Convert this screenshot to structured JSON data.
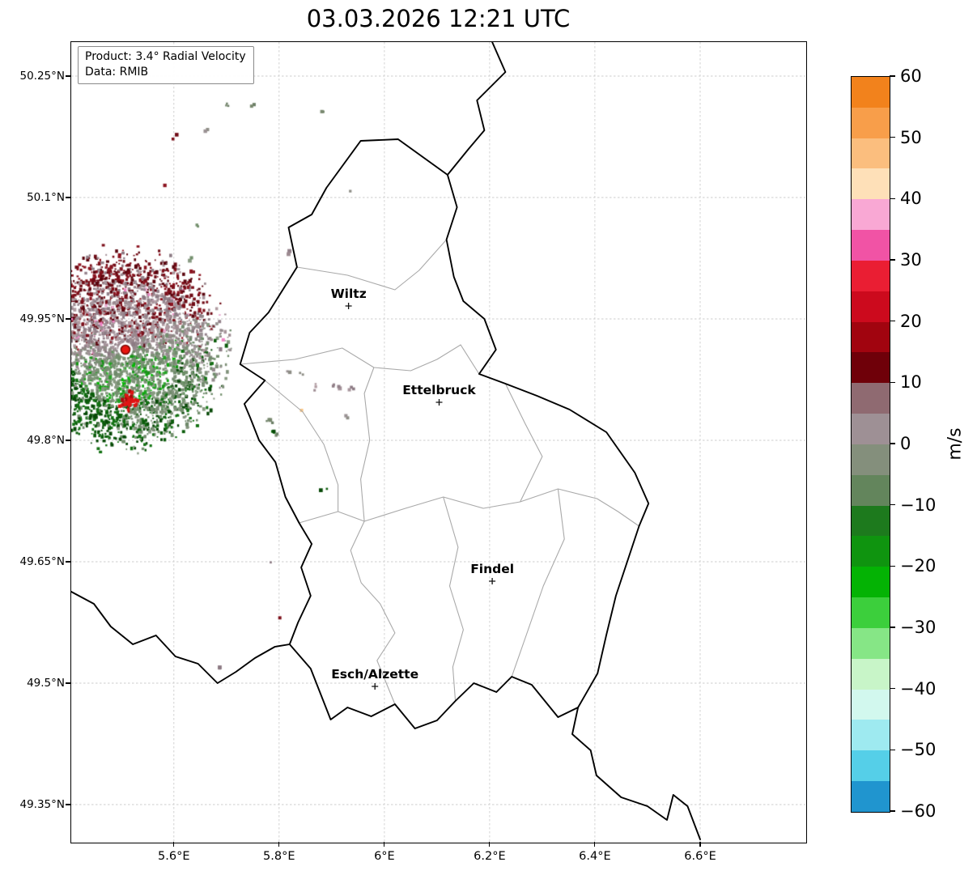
{
  "title": "03.03.2026 12:21 UTC",
  "info_box": {
    "line1": "Product: 3.4° Radial Velocity",
    "line2": "Data: RMIB"
  },
  "map": {
    "lon_min": 5.405,
    "lon_max": 6.8,
    "lat_min": 49.304,
    "lat_max": 50.292,
    "x_ticks": [
      {
        "value": 5.6,
        "label": "5.6°E"
      },
      {
        "value": 5.8,
        "label": "5.8°E"
      },
      {
        "value": 6.0,
        "label": "6°E"
      },
      {
        "value": 6.2,
        "label": "6.2°E"
      },
      {
        "value": 6.4,
        "label": "6.4°E"
      },
      {
        "value": 6.6,
        "label": "6.6°E"
      }
    ],
    "y_ticks": [
      {
        "value": 50.25,
        "label": "50.25°N"
      },
      {
        "value": 50.1,
        "label": "50.1°N"
      },
      {
        "value": 49.95,
        "label": "49.95°N"
      },
      {
        "value": 49.8,
        "label": "49.8°N"
      },
      {
        "value": 49.65,
        "label": "49.65°N"
      },
      {
        "value": 49.5,
        "label": "49.5°N"
      },
      {
        "value": 49.35,
        "label": "49.35°N"
      }
    ]
  },
  "cities": [
    {
      "name": "Wiltz",
      "lon": 5.932,
      "lat": 49.966
    },
    {
      "name": "Ettelbruck",
      "lon": 6.104,
      "lat": 49.847
    },
    {
      "name": "Findel",
      "lon": 6.205,
      "lat": 49.626
    },
    {
      "name": "Esch/Alzette",
      "lon": 5.982,
      "lat": 49.496
    }
  ],
  "borders": {
    "country": [
      [
        6.026,
        50.172
      ],
      [
        6.12,
        50.128
      ],
      [
        6.138,
        50.088
      ],
      [
        6.118,
        50.048
      ],
      [
        6.132,
        50.002
      ],
      [
        6.15,
        49.972
      ],
      [
        6.19,
        49.95
      ],
      [
        6.212,
        49.912
      ],
      [
        6.18,
        49.882
      ],
      [
        6.23,
        49.87
      ],
      [
        6.29,
        49.855
      ],
      [
        6.352,
        49.838
      ],
      [
        6.422,
        49.81
      ],
      [
        6.476,
        49.76
      ],
      [
        6.502,
        49.722
      ],
      [
        6.484,
        49.694
      ],
      [
        6.44,
        49.608
      ],
      [
        6.422,
        49.56
      ],
      [
        6.405,
        49.512
      ],
      [
        6.368,
        49.47
      ],
      [
        6.33,
        49.458
      ],
      [
        6.28,
        49.498
      ],
      [
        6.242,
        49.508
      ],
      [
        6.213,
        49.489
      ],
      [
        6.17,
        49.5
      ],
      [
        6.135,
        49.478
      ],
      [
        6.1,
        49.454
      ],
      [
        6.058,
        49.444
      ],
      [
        6.02,
        49.474
      ],
      [
        5.975,
        49.459
      ],
      [
        5.93,
        49.47
      ],
      [
        5.898,
        49.455
      ],
      [
        5.86,
        49.518
      ],
      [
        5.82,
        49.548
      ],
      [
        5.836,
        49.575
      ],
      [
        5.86,
        49.608
      ],
      [
        5.842,
        49.643
      ],
      [
        5.862,
        49.672
      ],
      [
        5.838,
        49.698
      ],
      [
        5.812,
        49.73
      ],
      [
        5.793,
        49.773
      ],
      [
        5.762,
        49.8
      ],
      [
        5.745,
        49.828
      ],
      [
        5.734,
        49.845
      ],
      [
        5.773,
        49.874
      ],
      [
        5.726,
        49.894
      ],
      [
        5.744,
        49.933
      ],
      [
        5.78,
        49.958
      ],
      [
        5.834,
        50.014
      ],
      [
        5.818,
        50.063
      ],
      [
        5.862,
        50.079
      ],
      [
        5.89,
        50.112
      ],
      [
        5.955,
        50.17
      ]
    ],
    "external": [
      [
        [
          6.12,
          50.128
        ],
        [
          6.16,
          50.16
        ],
        [
          6.19,
          50.183
        ],
        [
          6.176,
          50.22
        ],
        [
          6.23,
          50.255
        ],
        [
          6.205,
          50.292
        ]
      ],
      [
        [
          5.405,
          49.613
        ],
        [
          5.448,
          49.598
        ],
        [
          5.48,
          49.57
        ],
        [
          5.522,
          49.548
        ],
        [
          5.566,
          49.559
        ],
        [
          5.603,
          49.533
        ],
        [
          5.646,
          49.524
        ],
        [
          5.683,
          49.5
        ],
        [
          5.718,
          49.514
        ],
        [
          5.754,
          49.531
        ],
        [
          5.792,
          49.545
        ],
        [
          5.82,
          49.548
        ]
      ],
      [
        [
          6.368,
          49.47
        ],
        [
          6.357,
          49.437
        ],
        [
          6.392,
          49.417
        ],
        [
          6.403,
          49.386
        ],
        [
          6.45,
          49.359
        ],
        [
          6.5,
          49.348
        ],
        [
          6.537,
          49.331
        ],
        [
          6.549,
          49.362
        ],
        [
          6.576,
          49.348
        ],
        [
          6.6,
          49.307
        ]
      ]
    ],
    "internal": [
      [
        [
          5.834,
          50.014
        ],
        [
          5.93,
          50.004
        ],
        [
          6.02,
          49.986
        ],
        [
          6.066,
          50.01
        ],
        [
          6.118,
          50.048
        ]
      ],
      [
        [
          5.726,
          49.894
        ],
        [
          5.83,
          49.9
        ],
        [
          5.92,
          49.914
        ],
        [
          5.98,
          49.89
        ],
        [
          6.05,
          49.886
        ],
        [
          6.1,
          49.9
        ],
        [
          6.145,
          49.918
        ],
        [
          6.18,
          49.882
        ]
      ],
      [
        [
          5.98,
          49.89
        ],
        [
          5.962,
          49.858
        ],
        [
          5.972,
          49.8
        ],
        [
          5.955,
          49.752
        ],
        [
          5.962,
          49.7
        ],
        [
          5.936,
          49.664
        ],
        [
          5.956,
          49.624
        ],
        [
          5.992,
          49.598
        ],
        [
          6.02,
          49.562
        ],
        [
          5.986,
          49.528
        ],
        [
          6.02,
          49.474
        ]
      ],
      [
        [
          5.838,
          49.698
        ],
        [
          5.912,
          49.712
        ],
        [
          5.962,
          49.7
        ],
        [
          6.04,
          49.716
        ],
        [
          6.112,
          49.73
        ],
        [
          6.188,
          49.716
        ],
        [
          6.258,
          49.724
        ],
        [
          6.33,
          49.74
        ],
        [
          6.404,
          49.728
        ],
        [
          6.444,
          49.712
        ],
        [
          6.484,
          49.694
        ]
      ],
      [
        [
          6.112,
          49.73
        ],
        [
          6.14,
          49.668
        ],
        [
          6.124,
          49.62
        ],
        [
          6.15,
          49.566
        ],
        [
          6.13,
          49.52
        ],
        [
          6.135,
          49.478
        ]
      ],
      [
        [
          6.23,
          49.87
        ],
        [
          6.268,
          49.82
        ],
        [
          6.3,
          49.78
        ],
        [
          6.258,
          49.724
        ]
      ],
      [
        [
          6.33,
          49.74
        ],
        [
          6.342,
          49.678
        ],
        [
          6.302,
          49.62
        ],
        [
          6.27,
          49.56
        ],
        [
          6.242,
          49.508
        ]
      ],
      [
        [
          5.773,
          49.874
        ],
        [
          5.845,
          49.835
        ],
        [
          5.885,
          49.795
        ],
        [
          5.912,
          49.745
        ],
        [
          5.912,
          49.712
        ]
      ]
    ]
  },
  "radar": {
    "center_lon": 5.508,
    "center_lat": 49.912,
    "radius_deg_lat": 0.112,
    "echo_count": 4300,
    "site_marker_color": "#e8150f",
    "palette": {
      "mauve": [
        "#9d8b91",
        "#93818a",
        "#a7959c",
        "#8c7a83",
        "#b09ba1"
      ],
      "darkred": [
        "#6e0a14",
        "#8c1420",
        "#5a050e",
        "#7c0f1a"
      ],
      "pink": [
        "#ef82c4",
        "#e8a8cf"
      ],
      "green": [
        "#7e9078",
        "#6f8a6b",
        "#889a82",
        "#74906e"
      ],
      "brightgreen": [
        "#159415",
        "#0ca80c",
        "#00bb00",
        "#25a325"
      ],
      "darkgreen": [
        "#0b5c0b",
        "#064806",
        "#127112"
      ],
      "graygreen": [
        "#79896f",
        "#6c7f66"
      ],
      "gray": [
        "#948a8d",
        "#8d8d85",
        "#9b9294"
      ],
      "orange": [
        "#f9c27d"
      ]
    },
    "red_cluster": {
      "lon": 5.511,
      "lat": 49.849,
      "color": "#e01414"
    },
    "clutter": [
      [
        5.7,
        50.214,
        "graygreen",
        3
      ],
      [
        5.742,
        50.217,
        "graygreen",
        2
      ],
      [
        5.884,
        50.208,
        "graygreen",
        2
      ],
      [
        5.6,
        50.177,
        "darkred",
        2
      ],
      [
        5.655,
        50.182,
        "gray",
        2
      ],
      [
        5.58,
        50.12,
        "darkred",
        1
      ],
      [
        5.94,
        50.112,
        "gray",
        1
      ],
      [
        5.64,
        50.065,
        "green",
        2
      ],
      [
        5.816,
        50.034,
        "mauve",
        2
      ],
      [
        5.623,
        50.024,
        "green",
        2
      ],
      [
        5.69,
        49.93,
        "pink",
        1
      ],
      [
        5.816,
        49.889,
        "gray",
        2
      ],
      [
        5.839,
        49.884,
        "gray",
        2
      ],
      [
        5.872,
        49.867,
        "mauve",
        3
      ],
      [
        5.905,
        49.868,
        "mauve",
        4
      ],
      [
        5.932,
        49.866,
        "mauve",
        3
      ],
      [
        5.839,
        49.842,
        "orange",
        1
      ],
      [
        5.781,
        49.824,
        "graygreen",
        4
      ],
      [
        5.788,
        49.815,
        "darkgreen",
        3
      ],
      [
        5.794,
        49.806,
        "graygreen",
        2
      ],
      [
        5.92,
        49.83,
        "gray",
        2
      ],
      [
        5.882,
        49.744,
        "darkgreen",
        2
      ],
      [
        5.787,
        49.654,
        "mauve",
        1
      ],
      [
        5.796,
        49.586,
        "darkred",
        1
      ],
      [
        5.685,
        49.522,
        "mauve",
        2
      ]
    ]
  },
  "colorbar": {
    "label": "m/s",
    "vmin": -60,
    "vmax": 60,
    "ticks": [
      {
        "value": 60,
        "label": "60"
      },
      {
        "value": 50,
        "label": "50"
      },
      {
        "value": 40,
        "label": "40"
      },
      {
        "value": 30,
        "label": "30"
      },
      {
        "value": 20,
        "label": "20"
      },
      {
        "value": 10,
        "label": "10"
      },
      {
        "value": 0,
        "label": "0"
      },
      {
        "value": -10,
        "label": "−10"
      },
      {
        "value": -20,
        "label": "−20"
      },
      {
        "value": -30,
        "label": "−30"
      },
      {
        "value": -40,
        "label": "−40"
      },
      {
        "value": -50,
        "label": "−50"
      },
      {
        "value": -60,
        "label": "−60"
      }
    ],
    "segments": [
      "#f2821c",
      "#f89e4a",
      "#fbbe7e",
      "#fee0b8",
      "#f9a8d4",
      "#f153a5",
      "#ea1e33",
      "#cc0a1d",
      "#a1040f",
      "#6f0009",
      "#8f6a71",
      "#9e9095",
      "#848f7c",
      "#63855c",
      "#1d7a1d",
      "#0f940f",
      "#04b304",
      "#3ccf3c",
      "#86e686",
      "#c8f5c8",
      "#d2f8ee",
      "#9eeaf0",
      "#55cfe8",
      "#2095cf"
    ]
  },
  "chart_data": {
    "type": "heatmap",
    "title": "03.03.2026 12:21 UTC",
    "product": "3.4° Radial Velocity",
    "data_source": "RMIB",
    "units": "m/s",
    "color_scale_range": [
      -60,
      60
    ],
    "colorbar_tick_labels": [
      "60",
      "50",
      "40",
      "30",
      "20",
      "10",
      "0",
      "−10",
      "−20",
      "−30",
      "−40",
      "−50",
      "−60"
    ],
    "x_axis": {
      "label": "",
      "tick_labels": [
        "5.6°E",
        "5.8°E",
        "6°E",
        "6.2°E",
        "6.4°E",
        "6.6°E"
      ],
      "range": [
        5.405,
        6.8
      ]
    },
    "y_axis": {
      "label": "",
      "tick_labels": [
        "50.25°N",
        "50.1°N",
        "49.95°N",
        "49.8°N",
        "49.65°N",
        "49.5°N",
        "49.35°N"
      ],
      "range": [
        49.304,
        50.292
      ]
    },
    "grid": "dashed",
    "legend_position": "right-colorbar",
    "radar_site": {
      "lon": 5.51,
      "lat": 49.91
    },
    "cities": [
      {
        "name": "Wiltz",
        "lon": 5.93,
        "lat": 49.97
      },
      {
        "name": "Ettelbruck",
        "lon": 6.1,
        "lat": 49.85
      },
      {
        "name": "Findel",
        "lon": 6.21,
        "lat": 49.63
      },
      {
        "name": "Esch/Alzette",
        "lon": 5.98,
        "lat": 49.5
      }
    ],
    "summary": "Doppler radial-velocity PPI around a radar site near 5.51°E / 49.91°N, west of the Luxembourg border. Weak outbound velocities (0 to +10 m/s, gray-mauve with dark-red speckles) dominate north of the radar and weak inbound velocities (0 to −10 m/s, gray-green with green speckles) south of it; a small +20 to +25 m/s bright-red cluster lies just south of the site; isolated clutter pixels are scattered elsewhere; no echoes over Luxembourg itself."
  }
}
